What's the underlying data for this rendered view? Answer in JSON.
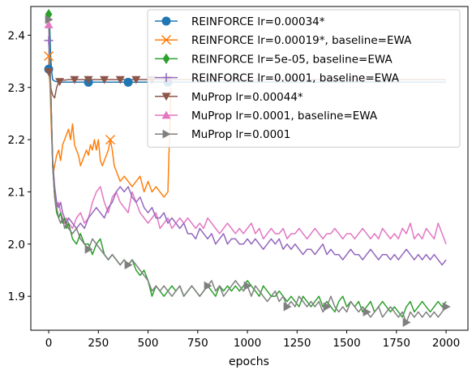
{
  "chart_data": {
    "type": "line",
    "xlabel": "epochs",
    "ylabel": "",
    "xlim": [
      -90,
      2110
    ],
    "ylim": [
      1.835,
      2.455
    ],
    "xticks": [
      0,
      250,
      500,
      750,
      1000,
      1250,
      1500,
      1750,
      2000
    ],
    "yticks": [
      1.9,
      2.0,
      2.1,
      2.2,
      2.3,
      2.4
    ],
    "ytick_labels": [
      "1.9",
      "2.0",
      "2.1",
      "2.2",
      "2.3",
      "2.4"
    ],
    "grid": false,
    "legend_position": "top-right",
    "series": [
      {
        "name": "REINFORCE lr=0.00034*",
        "color": "#1f77b4",
        "marker": "circle",
        "x": [
          0,
          5,
          10,
          15,
          20,
          30,
          40,
          60,
          80,
          100,
          150,
          200,
          300,
          400,
          500,
          600,
          800,
          1000,
          1200,
          1400,
          1600,
          1800,
          2000
        ],
        "y": [
          2.335,
          2.42,
          2.36,
          2.33,
          2.315,
          2.312,
          2.311,
          2.31,
          2.31,
          2.31,
          2.31,
          2.31,
          2.31,
          2.31,
          2.31,
          2.31,
          2.31,
          2.31,
          2.31,
          2.31,
          2.31,
          2.31,
          2.31
        ],
        "marker_x": [
          0,
          200,
          400,
          600
        ]
      },
      {
        "name": "REINFORCE lr=0.00019*, baseline=EWA",
        "color": "#ff7f0e",
        "marker": "x",
        "x": [
          0,
          5,
          10,
          15,
          20,
          25,
          30,
          40,
          50,
          60,
          70,
          80,
          90,
          100,
          110,
          120,
          130,
          140,
          150,
          160,
          170,
          180,
          190,
          200,
          210,
          220,
          230,
          240,
          250,
          260,
          270,
          280,
          290,
          300,
          310,
          320,
          330,
          340,
          350,
          360,
          380,
          400,
          420,
          440,
          460,
          480,
          500,
          520,
          540,
          560,
          580,
          600,
          605,
          610,
          615
        ],
        "y": [
          2.36,
          2.32,
          2.26,
          2.2,
          2.16,
          2.14,
          2.15,
          2.17,
          2.18,
          2.16,
          2.19,
          2.2,
          2.21,
          2.22,
          2.2,
          2.23,
          2.19,
          2.18,
          2.17,
          2.15,
          2.16,
          2.17,
          2.18,
          2.17,
          2.19,
          2.18,
          2.2,
          2.18,
          2.2,
          2.16,
          2.15,
          2.16,
          2.17,
          2.18,
          2.2,
          2.18,
          2.15,
          2.14,
          2.13,
          2.12,
          2.13,
          2.12,
          2.11,
          2.12,
          2.13,
          2.1,
          2.12,
          2.1,
          2.11,
          2.1,
          2.09,
          2.1,
          2.17,
          2.22,
          2.3
        ],
        "marker_x": [
          0,
          310
        ]
      },
      {
        "name": "REINFORCE lr=5e-05, baseline=EWA",
        "color": "#2ca02c",
        "marker": "diamond",
        "x": [
          0,
          10,
          20,
          30,
          40,
          50,
          60,
          70,
          80,
          90,
          100,
          120,
          140,
          160,
          180,
          200,
          220,
          240,
          260,
          280,
          300,
          320,
          340,
          360,
          380,
          400,
          420,
          440,
          460,
          480,
          500,
          520,
          540,
          560,
          580,
          600,
          620,
          640,
          660,
          680,
          700,
          720,
          740,
          760,
          780,
          800,
          820,
          840,
          860,
          880,
          900,
          920,
          940,
          960,
          980,
          1000,
          1020,
          1040,
          1060,
          1080,
          1100,
          1120,
          1140,
          1160,
          1180,
          1200,
          1220,
          1240,
          1260,
          1280,
          1300,
          1320,
          1340,
          1360,
          1380,
          1400,
          1420,
          1440,
          1460,
          1480,
          1500,
          1520,
          1540,
          1560,
          1580,
          1600,
          1620,
          1640,
          1660,
          1680,
          1700,
          1720,
          1740,
          1760,
          1780,
          1800,
          1820,
          1840,
          1860,
          1880,
          1900,
          1920,
          1940,
          1960,
          1980,
          2000
        ],
        "y": [
          2.44,
          2.3,
          2.15,
          2.09,
          2.06,
          2.05,
          2.06,
          2.04,
          2.05,
          2.03,
          2.04,
          2.01,
          2.0,
          2.02,
          2.0,
          2.0,
          1.98,
          2.0,
          2.01,
          1.98,
          1.97,
          1.98,
          1.97,
          1.96,
          1.97,
          1.96,
          1.97,
          1.95,
          1.94,
          1.95,
          1.93,
          1.9,
          1.92,
          1.91,
          1.9,
          1.91,
          1.92,
          1.91,
          1.92,
          1.9,
          1.91,
          1.92,
          1.91,
          1.9,
          1.91,
          1.92,
          1.91,
          1.9,
          1.92,
          1.91,
          1.92,
          1.91,
          1.92,
          1.91,
          1.92,
          1.93,
          1.92,
          1.91,
          1.9,
          1.92,
          1.91,
          1.9,
          1.9,
          1.91,
          1.9,
          1.89,
          1.9,
          1.89,
          1.88,
          1.9,
          1.89,
          1.88,
          1.89,
          1.9,
          1.88,
          1.89,
          1.88,
          1.87,
          1.89,
          1.9,
          1.88,
          1.89,
          1.88,
          1.89,
          1.87,
          1.88,
          1.89,
          1.87,
          1.88,
          1.89,
          1.88,
          1.87,
          1.88,
          1.87,
          1.86,
          1.88,
          1.89,
          1.87,
          1.88,
          1.89,
          1.88,
          1.87,
          1.88,
          1.89,
          1.88,
          1.89
        ],
        "marker_x": [
          0
        ]
      },
      {
        "name": "REINFORCE lr=0.0001, baseline=EWA",
        "color": "#9467bd",
        "marker": "plus",
        "x": [
          0,
          10,
          20,
          30,
          40,
          50,
          60,
          70,
          80,
          90,
          100,
          120,
          140,
          160,
          180,
          200,
          220,
          240,
          260,
          280,
          300,
          320,
          340,
          360,
          380,
          400,
          420,
          440,
          460,
          480,
          500,
          520,
          540,
          560,
          580,
          600,
          620,
          640,
          660,
          680,
          700,
          720,
          740,
          760,
          780,
          800,
          820,
          840,
          860,
          880,
          900,
          920,
          940,
          960,
          980,
          1000,
          1020,
          1040,
          1060,
          1080,
          1100,
          1120,
          1140,
          1160,
          1180,
          1200,
          1220,
          1240,
          1260,
          1280,
          1300,
          1320,
          1340,
          1360,
          1380,
          1400,
          1420,
          1440,
          1460,
          1480,
          1500,
          1520,
          1540,
          1560,
          1580,
          1600,
          1620,
          1640,
          1660,
          1680,
          1700,
          1720,
          1740,
          1760,
          1780,
          1800,
          1820,
          1840,
          1860,
          1880,
          1900,
          1920,
          1940,
          1960,
          1980,
          2000
        ],
        "y": [
          2.39,
          2.3,
          2.16,
          2.11,
          2.08,
          2.07,
          2.08,
          2.06,
          2.05,
          2.04,
          2.05,
          2.04,
          2.03,
          2.04,
          2.03,
          2.05,
          2.06,
          2.07,
          2.06,
          2.05,
          2.07,
          2.08,
          2.1,
          2.11,
          2.1,
          2.11,
          2.09,
          2.08,
          2.09,
          2.07,
          2.06,
          2.07,
          2.05,
          2.05,
          2.06,
          2.04,
          2.05,
          2.04,
          2.03,
          2.04,
          2.02,
          2.02,
          2.01,
          2.03,
          2.02,
          2.01,
          2.02,
          2.0,
          2.01,
          2.02,
          2.0,
          2.01,
          2.01,
          2.0,
          2.0,
          2.01,
          2.0,
          2.01,
          2.0,
          1.99,
          2.0,
          2.01,
          2.0,
          2.01,
          1.99,
          2.0,
          1.99,
          2.0,
          1.99,
          1.98,
          1.99,
          1.99,
          1.98,
          1.99,
          2.0,
          1.98,
          1.99,
          1.98,
          1.98,
          1.97,
          1.98,
          1.99,
          1.98,
          1.98,
          1.97,
          1.98,
          1.99,
          1.98,
          1.97,
          1.98,
          1.98,
          1.97,
          1.98,
          1.97,
          1.98,
          1.99,
          1.98,
          1.97,
          1.98,
          1.97,
          1.98,
          1.97,
          1.98,
          1.97,
          1.96,
          1.97
        ],
        "marker_x": [
          0
        ]
      },
      {
        "name": "MuProp lr=0.00044*",
        "color": "#8c564b",
        "marker": "triangle-down",
        "x": [
          0,
          10,
          20,
          30,
          40,
          50,
          60,
          70,
          80,
          100,
          150,
          200,
          300,
          400,
          500,
          600,
          700,
          800,
          900,
          1000,
          1200,
          1400,
          1600,
          1800,
          2000
        ],
        "y": [
          2.33,
          2.3,
          2.285,
          2.28,
          2.3,
          2.31,
          2.312,
          2.314,
          2.314,
          2.315,
          2.315,
          2.315,
          2.315,
          2.315,
          2.315,
          2.315,
          2.315,
          2.315,
          2.315,
          2.315,
          2.315,
          2.315,
          2.315,
          2.315,
          2.315
        ],
        "marker_x": [
          0,
          55,
          130,
          200,
          280,
          360,
          440,
          520,
          600
        ]
      },
      {
        "name": "MuProp lr=0.0001, baseline=EWA",
        "color": "#e377c2",
        "marker": "triangle-up",
        "x": [
          0,
          10,
          20,
          30,
          40,
          50,
          60,
          70,
          80,
          90,
          100,
          120,
          140,
          160,
          180,
          200,
          220,
          240,
          260,
          280,
          300,
          320,
          340,
          360,
          380,
          400,
          420,
          440,
          460,
          480,
          500,
          520,
          540,
          560,
          580,
          600,
          620,
          640,
          660,
          680,
          700,
          720,
          740,
          760,
          780,
          800,
          820,
          840,
          860,
          880,
          900,
          920,
          940,
          960,
          980,
          1000,
          1020,
          1040,
          1060,
          1080,
          1100,
          1120,
          1140,
          1160,
          1180,
          1200,
          1220,
          1240,
          1260,
          1280,
          1300,
          1320,
          1340,
          1360,
          1380,
          1400,
          1420,
          1440,
          1460,
          1480,
          1500,
          1520,
          1540,
          1560,
          1580,
          1600,
          1620,
          1640,
          1660,
          1680,
          1700,
          1720,
          1740,
          1760,
          1780,
          1800,
          1820,
          1840,
          1860,
          1880,
          1900,
          1920,
          1940,
          1960,
          1980,
          2000
        ],
        "y": [
          2.42,
          2.3,
          2.15,
          2.1,
          2.07,
          2.08,
          2.06,
          2.05,
          2.04,
          2.05,
          2.04,
          2.03,
          2.05,
          2.06,
          2.04,
          2.05,
          2.08,
          2.1,
          2.11,
          2.08,
          2.06,
          2.09,
          2.1,
          2.08,
          2.07,
          2.06,
          2.1,
          2.08,
          2.06,
          2.05,
          2.04,
          2.05,
          2.06,
          2.03,
          2.04,
          2.05,
          2.03,
          2.04,
          2.05,
          2.04,
          2.05,
          2.04,
          2.03,
          2.04,
          2.03,
          2.05,
          2.04,
          2.03,
          2.02,
          2.03,
          2.04,
          2.03,
          2.02,
          2.03,
          2.02,
          2.03,
          2.04,
          2.02,
          2.03,
          2.01,
          2.02,
          2.03,
          2.02,
          2.02,
          2.03,
          2.01,
          2.02,
          2.02,
          2.03,
          2.02,
          2.01,
          2.02,
          2.03,
          2.02,
          2.01,
          2.02,
          2.02,
          2.03,
          2.02,
          2.01,
          2.02,
          2.02,
          2.01,
          2.02,
          2.03,
          2.02,
          2.01,
          2.02,
          2.01,
          2.03,
          2.02,
          2.01,
          2.02,
          2.01,
          2.03,
          2.02,
          2.04,
          2.01,
          2.02,
          2.01,
          2.03,
          2.02,
          2.01,
          2.04,
          2.02,
          2.0
        ],
        "marker_x": [
          0
        ]
      },
      {
        "name": "MuProp lr=0.0001",
        "color": "#7f7f7f",
        "marker": "triangle-right",
        "x": [
          0,
          10,
          20,
          30,
          40,
          50,
          60,
          70,
          80,
          90,
          100,
          120,
          140,
          160,
          180,
          200,
          220,
          240,
          260,
          280,
          300,
          320,
          340,
          360,
          380,
          400,
          420,
          440,
          460,
          480,
          500,
          520,
          540,
          560,
          580,
          600,
          620,
          640,
          660,
          680,
          700,
          720,
          740,
          760,
          780,
          800,
          820,
          840,
          860,
          880,
          900,
          920,
          940,
          960,
          980,
          1000,
          1020,
          1040,
          1060,
          1080,
          1100,
          1120,
          1140,
          1160,
          1180,
          1200,
          1220,
          1240,
          1260,
          1280,
          1300,
          1320,
          1340,
          1360,
          1380,
          1400,
          1420,
          1440,
          1460,
          1480,
          1500,
          1520,
          1540,
          1560,
          1580,
          1600,
          1620,
          1640,
          1660,
          1680,
          1700,
          1720,
          1740,
          1760,
          1780,
          1800,
          1820,
          1840,
          1860,
          1880,
          1900,
          1920,
          1940,
          1960,
          1980,
          2000
        ],
        "y": [
          2.43,
          2.3,
          2.15,
          2.09,
          2.07,
          2.05,
          2.04,
          2.05,
          2.03,
          2.04,
          2.03,
          2.02,
          2.03,
          2.01,
          2.0,
          1.99,
          2.01,
          2.0,
          1.99,
          1.98,
          1.97,
          1.98,
          1.97,
          1.96,
          1.97,
          1.96,
          1.97,
          1.96,
          1.95,
          1.94,
          1.93,
          1.91,
          1.92,
          1.91,
          1.92,
          1.91,
          1.9,
          1.91,
          1.92,
          1.9,
          1.91,
          1.92,
          1.91,
          1.9,
          1.91,
          1.92,
          1.93,
          1.91,
          1.92,
          1.9,
          1.91,
          1.92,
          1.93,
          1.92,
          1.91,
          1.92,
          1.9,
          1.92,
          1.91,
          1.9,
          1.89,
          1.9,
          1.91,
          1.89,
          1.9,
          1.88,
          1.89,
          1.88,
          1.9,
          1.89,
          1.88,
          1.89,
          1.88,
          1.89,
          1.87,
          1.88,
          1.9,
          1.88,
          1.87,
          1.88,
          1.87,
          1.89,
          1.88,
          1.87,
          1.88,
          1.87,
          1.86,
          1.87,
          1.88,
          1.86,
          1.87,
          1.88,
          1.87,
          1.86,
          1.87,
          1.85,
          1.87,
          1.86,
          1.87,
          1.86,
          1.87,
          1.86,
          1.87,
          1.86,
          1.87,
          1.88
        ],
        "marker_x": [
          0,
          200,
          400,
          800,
          1000,
          1200,
          1400,
          1600,
          1800,
          2000
        ]
      }
    ]
  }
}
